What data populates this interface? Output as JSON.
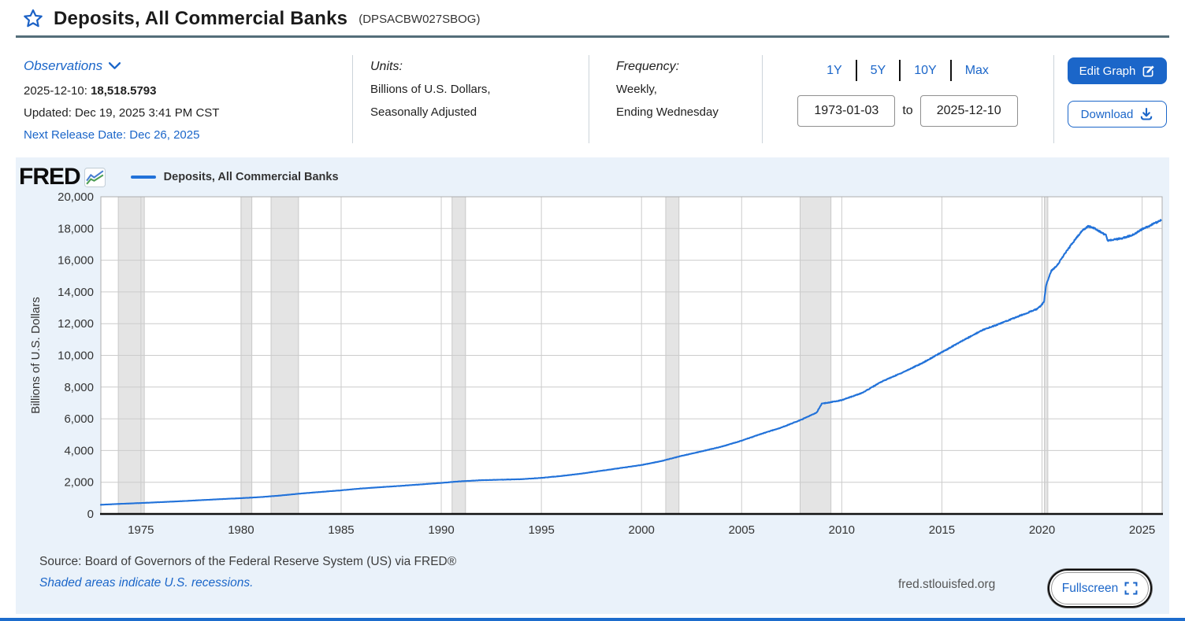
{
  "header": {
    "title": "Deposits, All Commercial Banks",
    "series_id": "(DPSACBW027SBOG)"
  },
  "observations": {
    "label": "Observations",
    "latest_date": "2025-12-10:",
    "latest_value": "18,518.5793",
    "updated": "Updated: Dec 19, 2025 3:41 PM CST",
    "next_release": "Next Release Date: Dec 26, 2025"
  },
  "units": {
    "label": "Units:",
    "line1": "Billions of U.S. Dollars,",
    "line2": "Seasonally Adjusted"
  },
  "frequency": {
    "label": "Frequency:",
    "line1": "Weekly,",
    "line2": "Ending Wednesday"
  },
  "range": {
    "presets": [
      "1Y",
      "5Y",
      "10Y",
      "Max"
    ],
    "start_date": "1973-01-03",
    "to_label": "to",
    "end_date": "2025-12-10"
  },
  "actions": {
    "edit_graph": "Edit Graph",
    "download": "Download"
  },
  "chart_header": {
    "logo": "FRED",
    "legend_label": "Deposits, All Commercial Banks"
  },
  "chart_footer": {
    "source": "Source: Board of Governors of the Federal Reserve System (US) via FRED®",
    "recession_note": "Shaded areas indicate U.S. recessions.",
    "site": "fred.stlouisfed.org",
    "fullscreen": "Fullscreen"
  },
  "colors": {
    "accent_blue": "#1b66c9",
    "line_blue": "#2272d9",
    "panel_bg": "#eaf2fa",
    "recession_gray": "#e4e4e4",
    "grid_gray": "#cccccc",
    "rule_slate": "#546e7a"
  },
  "chart_data": {
    "type": "line",
    "title": "Deposits, All Commercial Banks",
    "series_name": "Deposits, All Commercial Banks",
    "ylabel": "Billions of U.S. Dollars",
    "xlabel": "",
    "ylim": [
      0,
      20000
    ],
    "yticks": [
      0,
      2000,
      4000,
      6000,
      8000,
      10000,
      12000,
      14000,
      16000,
      18000,
      20000
    ],
    "xlim": [
      1973.0,
      2026.0
    ],
    "xticks": [
      1975,
      1980,
      1985,
      1990,
      1995,
      2000,
      2005,
      2010,
      2015,
      2020,
      2025
    ],
    "grid": true,
    "legend_position": "top-left",
    "line_color": "#2272d9",
    "grid_color": "#cccccc",
    "border_color": "#adadad",
    "recession_color": "#e4e4e4",
    "recession_edge_color": "#c9c9c9",
    "recessions": [
      [
        1973.87,
        1975.17
      ],
      [
        1980.0,
        1980.54
      ],
      [
        1981.5,
        1982.87
      ],
      [
        1990.54,
        1991.21
      ],
      [
        2001.21,
        2001.87
      ],
      [
        2007.92,
        2009.46
      ],
      [
        2020.12,
        2020.29
      ]
    ],
    "points": [
      [
        1973.0,
        580
      ],
      [
        1974,
        640
      ],
      [
        1975,
        690
      ],
      [
        1976,
        745
      ],
      [
        1977,
        805
      ],
      [
        1978,
        870
      ],
      [
        1979,
        935
      ],
      [
        1980,
        995
      ],
      [
        1981,
        1065
      ],
      [
        1982,
        1165
      ],
      [
        1983,
        1290
      ],
      [
        1984,
        1390
      ],
      [
        1985,
        1490
      ],
      [
        1986,
        1605
      ],
      [
        1987,
        1690
      ],
      [
        1988,
        1775
      ],
      [
        1989,
        1865
      ],
      [
        1990,
        1960
      ],
      [
        1991,
        2060
      ],
      [
        1992,
        2130
      ],
      [
        1993,
        2160
      ],
      [
        1994,
        2190
      ],
      [
        1995,
        2275
      ],
      [
        1996,
        2395
      ],
      [
        1997,
        2545
      ],
      [
        1998,
        2725
      ],
      [
        1999,
        2905
      ],
      [
        2000,
        3085
      ],
      [
        2001,
        3335
      ],
      [
        2002,
        3665
      ],
      [
        2003,
        3945
      ],
      [
        2004,
        4245
      ],
      [
        2005,
        4625
      ],
      [
        2006,
        5055
      ],
      [
        2007,
        5455
      ],
      [
        2008,
        5955
      ],
      [
        2008.75,
        6400
      ],
      [
        2009,
        6950
      ],
      [
        2009.5,
        7060
      ],
      [
        2010,
        7180
      ],
      [
        2011,
        7620
      ],
      [
        2012,
        8350
      ],
      [
        2013,
        8900
      ],
      [
        2014,
        9500
      ],
      [
        2015,
        10200
      ],
      [
        2016,
        10900
      ],
      [
        2017,
        11580
      ],
      [
        2018,
        12050
      ],
      [
        2019,
        12550
      ],
      [
        2019.8,
        12950
      ],
      [
        2020.1,
        13350
      ],
      [
        2020.2,
        14400
      ],
      [
        2020.45,
        15300
      ],
      [
        2020.8,
        15750
      ],
      [
        2021,
        16150
      ],
      [
        2021.5,
        17050
      ],
      [
        2022,
        17850
      ],
      [
        2022.3,
        18150
      ],
      [
        2022.6,
        18020
      ],
      [
        2023.1,
        17650
      ],
      [
        2023.2,
        17580
      ],
      [
        2023.28,
        17250
      ],
      [
        2023.6,
        17300
      ],
      [
        2024,
        17380
      ],
      [
        2024.5,
        17580
      ],
      [
        2025,
        17950
      ],
      [
        2025.5,
        18250
      ],
      [
        2025.94,
        18518.58
      ]
    ],
    "last_observation": {
      "date": "2025-12-10",
      "value": 18518.5793
    }
  }
}
